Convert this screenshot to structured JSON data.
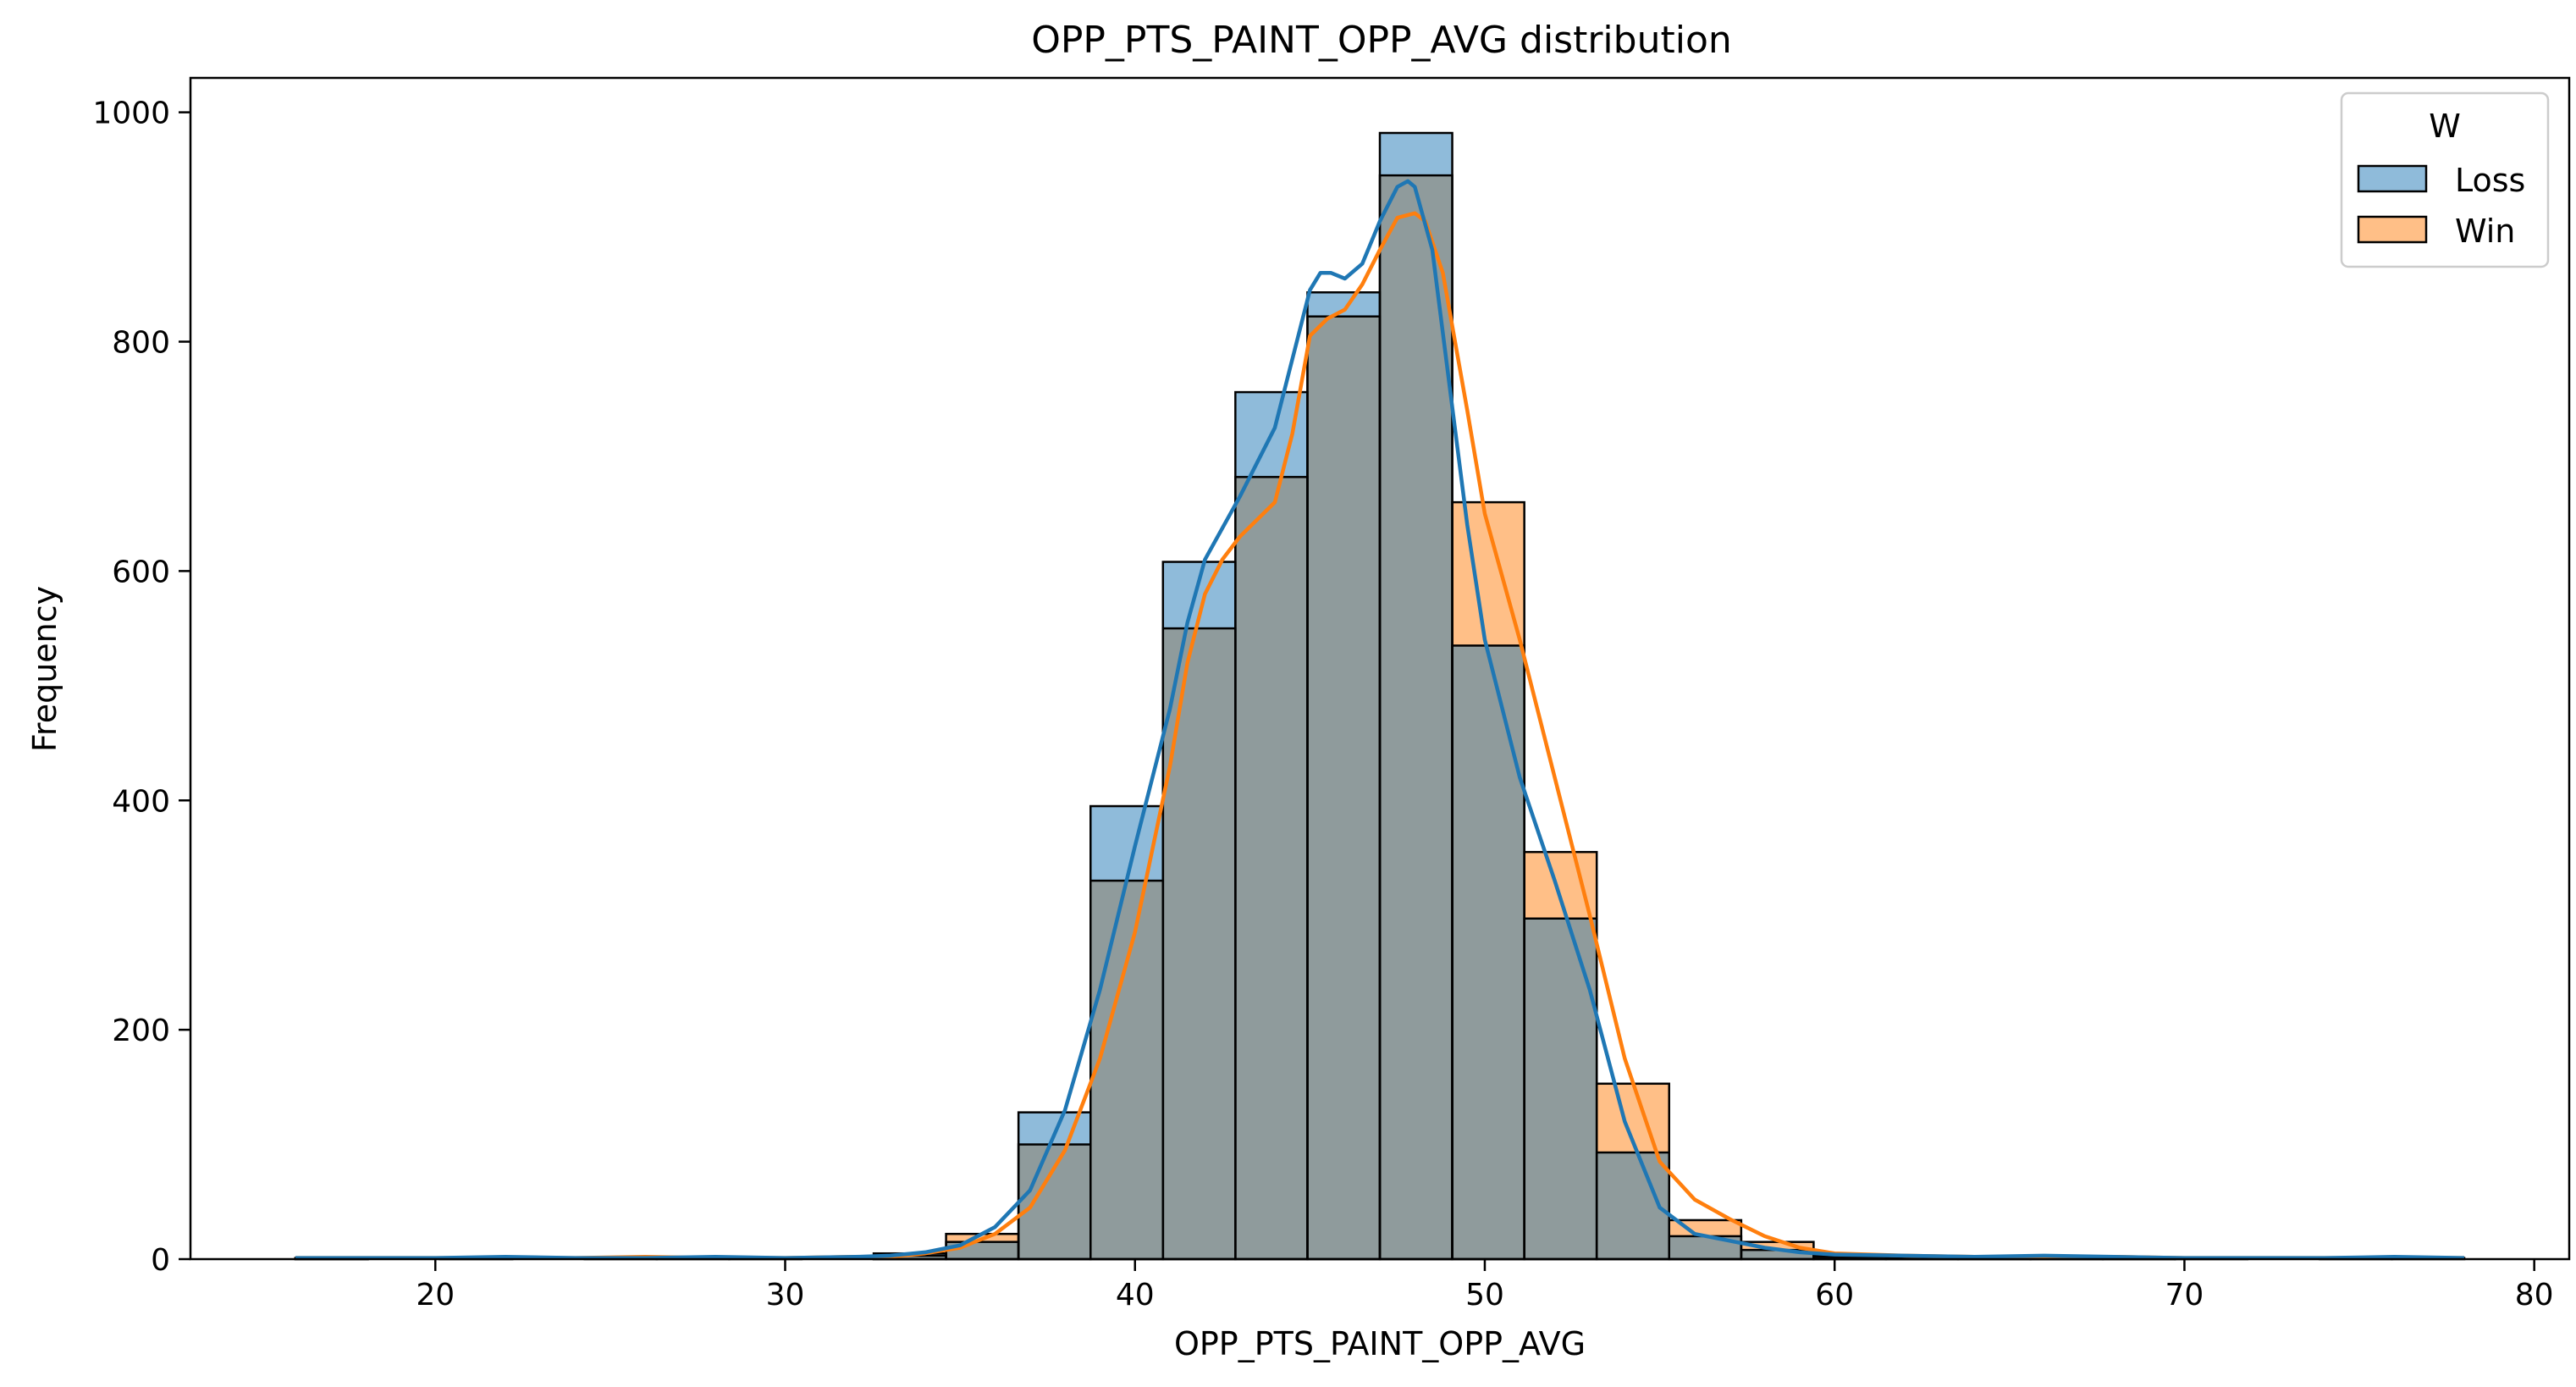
{
  "chart_data": {
    "type": "bar",
    "subtype": "histogram-overlaid-with-kde",
    "title": "OPP_PTS_PAINT_OPP_AVG distribution",
    "xlabel": "OPP_PTS_PAINT_OPP_AVG",
    "ylabel": "Frequency",
    "xlim": [
      13,
      81
    ],
    "ylim": [
      0,
      1030
    ],
    "xticks": [
      20,
      30,
      40,
      50,
      60,
      70,
      80
    ],
    "yticks": [
      0,
      200,
      400,
      600,
      800,
      1000
    ],
    "grid": false,
    "legend": {
      "title": "W",
      "position": "top-right"
    },
    "bin_edges": [
      16.0,
      18.07,
      20.13,
      22.2,
      24.27,
      26.33,
      28.4,
      30.47,
      32.53,
      34.6,
      36.67,
      38.73,
      40.8,
      42.87,
      44.93,
      47.0,
      49.07,
      51.13,
      53.2,
      55.27,
      57.33,
      59.4,
      61.47,
      63.53,
      65.6,
      67.67,
      69.73,
      71.8,
      73.87,
      75.93,
      78.0
    ],
    "series": [
      {
        "name": "Loss",
        "color": "#1f77b4",
        "counts": [
          1,
          0,
          1,
          0,
          0,
          1,
          0,
          0,
          5,
          15,
          128,
          395,
          608,
          756,
          843,
          982,
          535,
          297,
          93,
          20,
          8,
          2,
          1,
          1,
          2,
          1,
          1,
          0,
          1,
          1
        ],
        "kde": [
          [
            16,
            1
          ],
          [
            18,
            1
          ],
          [
            20,
            1
          ],
          [
            22,
            2
          ],
          [
            24,
            1
          ],
          [
            26,
            1
          ],
          [
            28,
            2
          ],
          [
            30,
            1
          ],
          [
            32,
            2
          ],
          [
            33,
            3
          ],
          [
            34,
            6
          ],
          [
            35,
            12
          ],
          [
            36,
            28
          ],
          [
            37,
            60
          ],
          [
            38,
            130
          ],
          [
            39,
            235
          ],
          [
            40,
            360
          ],
          [
            41,
            480
          ],
          [
            41.5,
            555
          ],
          [
            42,
            610
          ],
          [
            43,
            665
          ],
          [
            44,
            725
          ],
          [
            45,
            845
          ],
          [
            45.3,
            860
          ],
          [
            45.6,
            860
          ],
          [
            46,
            855
          ],
          [
            46.5,
            868
          ],
          [
            47,
            905
          ],
          [
            47.5,
            935
          ],
          [
            47.8,
            940
          ],
          [
            48,
            935
          ],
          [
            48.5,
            880
          ],
          [
            49,
            760
          ],
          [
            49.5,
            640
          ],
          [
            50,
            540
          ],
          [
            51,
            420
          ],
          [
            52,
            330
          ],
          [
            53,
            235
          ],
          [
            54,
            120
          ],
          [
            55,
            45
          ],
          [
            56,
            22
          ],
          [
            57,
            16
          ],
          [
            58,
            10
          ],
          [
            59,
            6
          ],
          [
            60,
            4
          ],
          [
            62,
            3
          ],
          [
            64,
            2
          ],
          [
            66,
            3
          ],
          [
            68,
            2
          ],
          [
            70,
            1
          ],
          [
            72,
            1
          ],
          [
            74,
            1
          ],
          [
            76,
            2
          ],
          [
            78,
            1
          ]
        ]
      },
      {
        "name": "Win",
        "color": "#ff7f0e",
        "counts": [
          1,
          0,
          0,
          0,
          1,
          0,
          1,
          0,
          3,
          22,
          100,
          330,
          550,
          682,
          822,
          945,
          660,
          355,
          153,
          34,
          15,
          3,
          2,
          1,
          1,
          1,
          0,
          0,
          0,
          0
        ],
        "kde": [
          [
            16,
            1
          ],
          [
            18,
            1
          ],
          [
            20,
            1
          ],
          [
            22,
            1
          ],
          [
            24,
            1
          ],
          [
            26,
            2
          ],
          [
            28,
            1
          ],
          [
            30,
            1
          ],
          [
            32,
            2
          ],
          [
            33,
            2
          ],
          [
            34,
            5
          ],
          [
            35,
            10
          ],
          [
            36,
            22
          ],
          [
            37,
            45
          ],
          [
            38,
            95
          ],
          [
            39,
            175
          ],
          [
            40,
            285
          ],
          [
            41,
            430
          ],
          [
            41.5,
            520
          ],
          [
            42,
            580
          ],
          [
            42.5,
            610
          ],
          [
            43,
            630
          ],
          [
            44,
            660
          ],
          [
            44.5,
            720
          ],
          [
            45,
            805
          ],
          [
            45.5,
            820
          ],
          [
            46,
            828
          ],
          [
            46.5,
            850
          ],
          [
            47,
            880
          ],
          [
            47.5,
            908
          ],
          [
            48,
            912
          ],
          [
            48.3,
            905
          ],
          [
            48.8,
            860
          ],
          [
            49.5,
            740
          ],
          [
            50,
            650
          ],
          [
            51,
            540
          ],
          [
            52,
            420
          ],
          [
            53,
            300
          ],
          [
            54,
            175
          ],
          [
            55,
            85
          ],
          [
            56,
            52
          ],
          [
            57,
            35
          ],
          [
            58,
            20
          ],
          [
            59,
            10
          ],
          [
            60,
            5
          ],
          [
            62,
            3
          ],
          [
            64,
            2
          ],
          [
            66,
            2
          ],
          [
            68,
            2
          ],
          [
            70,
            1
          ],
          [
            72,
            1
          ],
          [
            74,
            1
          ],
          [
            76,
            1
          ],
          [
            78,
            1
          ]
        ]
      }
    ],
    "overlap_color": "#8f9b9c"
  }
}
